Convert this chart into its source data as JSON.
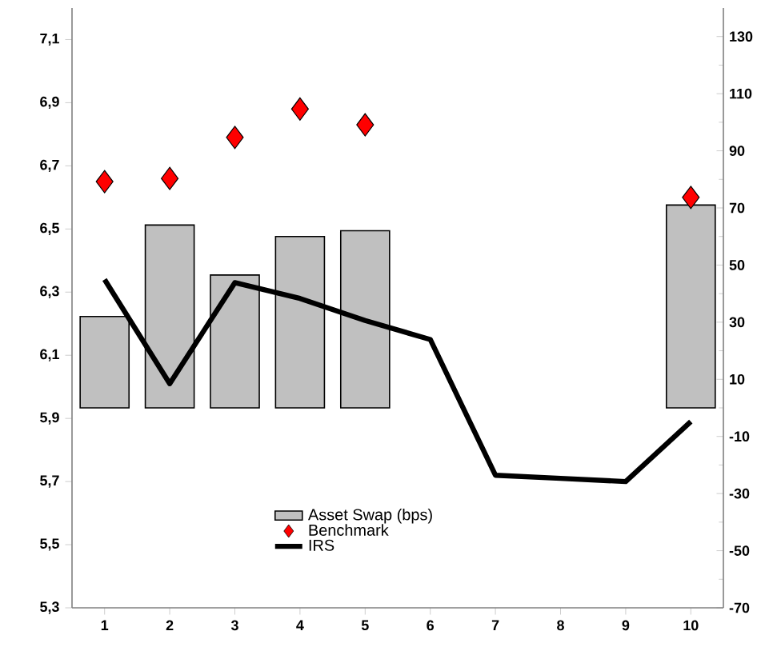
{
  "chart_data": {
    "type": "bar",
    "categories": [
      "1",
      "2",
      "3",
      "4",
      "5",
      "6",
      "7",
      "8",
      "9",
      "10"
    ],
    "series": [
      {
        "name": "Asset Swap (bps)",
        "axis": "y2",
        "color": "#c0c0c0",
        "values": [
          32,
          64,
          46.5,
          60,
          62,
          null,
          null,
          null,
          null,
          71
        ]
      },
      {
        "name": "Benchmark",
        "type": "scatter",
        "marker": "diamond",
        "color": "#ff0000",
        "values": [
          6.65,
          6.66,
          6.79,
          6.88,
          6.83,
          null,
          null,
          null,
          null,
          6.6
        ]
      },
      {
        "name": "IRS",
        "type": "line",
        "color": "#000000",
        "values": [
          6.34,
          6.01,
          6.33,
          6.28,
          6.21,
          6.15,
          5.72,
          5.71,
          5.7,
          5.89
        ]
      }
    ],
    "ylim": [
      5.3,
      7.2
    ],
    "yticks": [
      {
        "value": 5.3,
        "label": "5,3"
      },
      {
        "value": 5.5,
        "label": "5,5"
      },
      {
        "value": 5.7,
        "label": "5,7"
      },
      {
        "value": 5.9,
        "label": "5,9"
      },
      {
        "value": 6.1,
        "label": "6,1"
      },
      {
        "value": 6.3,
        "label": "6,3"
      },
      {
        "value": 6.5,
        "label": "6,5"
      },
      {
        "value": 6.7,
        "label": "6,7"
      },
      {
        "value": 6.9,
        "label": "6,9"
      },
      {
        "value": 7.1,
        "label": "7,1"
      }
    ],
    "y2lim": [
      -70,
      140
    ],
    "y2ticks": [
      -70,
      -50,
      -30,
      -10,
      10,
      30,
      50,
      70,
      90,
      110,
      130
    ],
    "legend": "bottom",
    "grid": false
  }
}
